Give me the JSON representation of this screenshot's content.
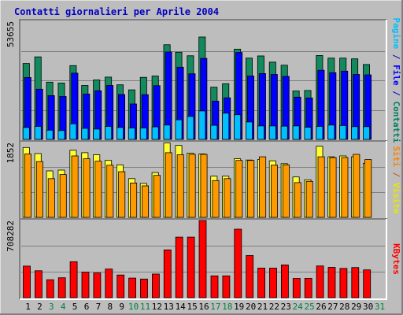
{
  "chart_data": {
    "type": "bar",
    "title": "Contatti giornalieri per Aprile 2004",
    "categories": [
      "1",
      "2",
      "3",
      "4",
      "5",
      "6",
      "7",
      "8",
      "9",
      "10",
      "11",
      "12",
      "13",
      "14",
      "15",
      "16",
      "17",
      "18",
      "19",
      "20",
      "21",
      "22",
      "23",
      "24",
      "25",
      "26",
      "27",
      "28",
      "29",
      "30",
      "31"
    ],
    "weekend_days": [
      "3",
      "4",
      "10",
      "11",
      "17",
      "18",
      "24",
      "25",
      "31"
    ],
    "panels": [
      {
        "ylabel_parts": [
          {
            "text": "Pagine",
            "color": "#00bfff"
          },
          {
            "text": " / ",
            "color": "#0000c0"
          },
          {
            "text": "File",
            "color": "#0000ff"
          },
          {
            "text": " / ",
            "color": "#0000c0"
          },
          {
            "text": "Contatti",
            "color": "#008060"
          }
        ],
        "ymax_label": "53655",
        "ymax": 53655,
        "series": [
          {
            "name": "Contatti",
            "color": "#138a5d",
            "values": [
              34500,
              37500,
              26000,
              25600,
              33500,
              24500,
              27000,
              28300,
              24800,
              22500,
              28200,
              28800,
              43000,
              39600,
              38000,
              46500,
              23700,
              25300,
              41000,
              36900,
              37900,
              35100,
              33700,
              22000,
              22200,
              38100,
              36900,
              36900,
              36600,
              34000,
              0
            ]
          },
          {
            "name": "File",
            "color": "#0000ff",
            "values": [
              28100,
              22800,
              19900,
              19500,
              30100,
              20600,
              22100,
              24500,
              20400,
              16100,
              20300,
              24400,
              39700,
              32800,
              29800,
              36800,
              17400,
              18900,
              39500,
              28800,
              29900,
              29500,
              28600,
              19200,
              18800,
              31400,
              30300,
              31000,
              29500,
              29300,
              0
            ]
          },
          {
            "name": "Pagine",
            "color": "#00bfff",
            "values": [
              5400,
              5900,
              4200,
              4000,
              7100,
              5000,
              4700,
              5900,
              5400,
              5200,
              5200,
              5700,
              6500,
              8900,
              10400,
              12900,
              6400,
              11900,
              11200,
              7900,
              6100,
              6100,
              6000,
              6100,
              5500,
              5900,
              6500,
              6300,
              5800,
              5800,
              0
            ]
          }
        ]
      },
      {
        "ylabel_parts": [
          {
            "text": "Siti",
            "color": "#ff8000"
          },
          {
            "text": " / ",
            "color": "#c06000"
          },
          {
            "text": "Visite",
            "color": "#e8e800"
          }
        ],
        "ymax_label": "1852",
        "ymax": 1852,
        "series": [
          {
            "name": "Visite",
            "color": "#ffff33",
            "values": [
              1730,
              1580,
              1150,
              1170,
              1660,
              1600,
              1550,
              1410,
              1300,
              960,
              840,
              1110,
              1840,
              1780,
              1590,
              1570,
              1020,
              1020,
              1450,
              1420,
              1430,
              1400,
              1330,
              1000,
              930,
              1760,
              1500,
              1520,
              1500,
              1340,
              0
            ]
          },
          {
            "name": "Siti",
            "color": "#ff9900",
            "values": [
              1570,
              1380,
              960,
              1060,
              1520,
              1450,
              1390,
              1290,
              1130,
              850,
              780,
              1040,
              1600,
              1550,
              1560,
              1560,
              910,
              960,
              1410,
              1410,
              1500,
              1290,
              1300,
              860,
              890,
              1500,
              1480,
              1480,
              1560,
              1430,
              0
            ]
          }
        ]
      },
      {
        "ylabel_parts": [
          {
            "text": "KBytes",
            "color": "#ff0000"
          }
        ],
        "ymax_label": "708282",
        "ymax": 708282,
        "series": [
          {
            "name": "KBytes",
            "color": "#ff0000",
            "values": [
              290000,
              247000,
              165000,
              183000,
              330000,
              234000,
              227000,
              263000,
              208000,
              180000,
              171000,
              217000,
              439000,
              556000,
              556000,
              708282,
              200000,
              200000,
              629000,
              387000,
              272000,
              272000,
              301000,
              177000,
              178000,
              291000,
              278000,
              269000,
              277000,
              255000,
              0
            ]
          }
        ]
      }
    ],
    "colors": {
      "background": "#bdbdbd",
      "frame_dark": "#808080",
      "frame_light": "#ffffff",
      "title": "#0000c0",
      "weekday_label": "#000000",
      "weekend_label": "#008040",
      "gridline": "#7f7f7f"
    }
  }
}
